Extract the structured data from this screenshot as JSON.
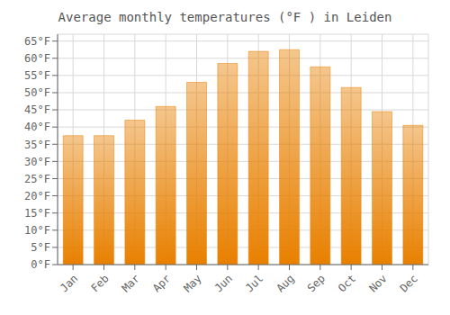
{
  "chart_data": {
    "type": "bar",
    "title": "Average monthly temperatures (°F ) in Leiden",
    "categories": [
      "Jan",
      "Feb",
      "Mar",
      "Apr",
      "May",
      "Jun",
      "Jul",
      "Aug",
      "Sep",
      "Oct",
      "Nov",
      "Dec"
    ],
    "values": [
      37.5,
      37.5,
      42.0,
      46.0,
      53.0,
      58.5,
      62.0,
      62.5,
      57.5,
      51.5,
      44.5,
      40.5
    ],
    "color": "#E88000",
    "ylim": [
      0,
      67
    ],
    "yticks": [
      {
        "value": 0,
        "label": "0°F"
      },
      {
        "value": 5,
        "label": "5°F"
      },
      {
        "value": 10,
        "label": "10°F"
      },
      {
        "value": 15,
        "label": "15°F"
      },
      {
        "value": 20,
        "label": "20°F"
      },
      {
        "value": 25,
        "label": "25°F"
      },
      {
        "value": 30,
        "label": "30°F"
      },
      {
        "value": 35,
        "label": "35°F"
      },
      {
        "value": 40,
        "label": "40°F"
      },
      {
        "value": 45,
        "label": "45°F"
      },
      {
        "value": 50,
        "label": "50°F"
      },
      {
        "value": 55,
        "label": "55°F"
      },
      {
        "value": 60,
        "label": "60°F"
      },
      {
        "value": 65,
        "label": "65°F"
      }
    ],
    "grid": true
  }
}
